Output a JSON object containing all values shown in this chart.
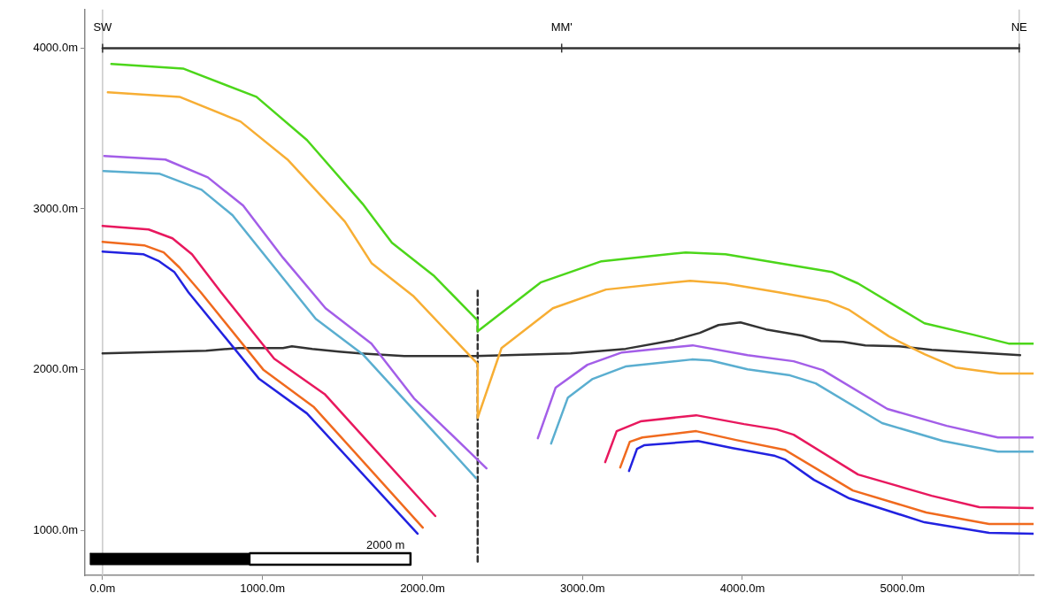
{
  "chart_data": {
    "type": "line",
    "marker": "none",
    "line_style": "solid",
    "grid": false,
    "legend": false,
    "xlim": [
      -110,
      5820
    ],
    "ylim": [
      720,
      4240
    ],
    "xticks": [
      {
        "value": 0,
        "label": "0.0m"
      },
      {
        "value": 1000,
        "label": "1000.0m"
      },
      {
        "value": 2000,
        "label": "2000.0m"
      },
      {
        "value": 3000,
        "label": "3000.0m"
      },
      {
        "value": 4000,
        "label": "4000.0m"
      },
      {
        "value": 5000,
        "label": "5000.0m"
      }
    ],
    "yticks": [
      {
        "value": 1000,
        "label": "1000.0m"
      },
      {
        "value": 2000,
        "label": "2000.0m"
      },
      {
        "value": 3000,
        "label": "3000.0m"
      },
      {
        "value": 4000,
        "label": "4000.0m"
      }
    ],
    "series": [
      {
        "color": "#4cd61a",
        "x": [
          55,
          503,
          962,
          1278,
          1626,
          1809,
          2069,
          2345,
          2345,
          2738,
          3119,
          3645,
          3894,
          4226,
          4558,
          4723,
          5138,
          5442,
          5664,
          5819
        ],
        "values": [
          3901,
          3873,
          3697,
          3428,
          3031,
          2789,
          2586,
          2305,
          2239,
          2542,
          2674,
          2729,
          2718,
          2663,
          2608,
          2536,
          2288,
          2217,
          2162,
          2162
        ]
      },
      {
        "color": "#f7ae34",
        "x": [
          33,
          481,
          863,
          1156,
          1515,
          1681,
          1941,
          2345,
          2345,
          2494,
          2815,
          3147,
          3673,
          3894,
          4226,
          4530,
          4668,
          4917,
          5138,
          5332,
          5608,
          5819
        ],
        "values": [
          3725,
          3697,
          3543,
          3307,
          2921,
          2663,
          2459,
          2035,
          1700,
          2134,
          2382,
          2498,
          2553,
          2536,
          2481,
          2426,
          2371,
          2206,
          2096,
          2013,
          1975,
          1975
        ]
      },
      {
        "color": "#a35ee8",
        "x": [
          11,
          393,
          658,
          879,
          1128,
          1394,
          1681,
          1947,
          2400,
          2560,
          2721,
          2832,
          3031,
          3247,
          3689,
          4032,
          4320,
          4502,
          4906,
          5277,
          5597,
          5819
        ],
        "values": [
          3329,
          3307,
          3196,
          3020,
          2696,
          2382,
          2162,
          1821,
          1386,
          null,
          1573,
          1887,
          2030,
          2107,
          2151,
          2090,
          2052,
          1997,
          1755,
          1650,
          1578,
          1578
        ]
      },
      {
        "color": "#5aaed0",
        "x": [
          6,
          354,
          619,
          813,
          1333,
          1626,
          2334,
          2560,
          2804,
          2909,
          3064,
          3269,
          3684,
          3800,
          4032,
          4298,
          4458,
          4873,
          5254,
          5597,
          5819
        ],
        "values": [
          3235,
          3219,
          3119,
          2960,
          2316,
          2096,
          1325,
          null,
          1540,
          1826,
          1942,
          2019,
          2063,
          2057,
          2002,
          1964,
          1914,
          1667,
          1556,
          1490,
          1490
        ]
      },
      {
        "color": "#e8185e",
        "x": [
          0,
          288,
          437,
          559,
          741,
          1073,
          1388,
          2080,
          2600,
          3142,
          3214,
          3363,
          3711,
          4010,
          4215,
          4320,
          4723,
          5183,
          5481,
          5819
        ],
        "values": [
          2894,
          2872,
          2817,
          2718,
          2481,
          2068,
          1848,
          1089,
          null,
          1424,
          1617,
          1678,
          1716,
          1661,
          1628,
          1595,
          1347,
          1215,
          1144,
          1138
        ]
      },
      {
        "color": "#f06a1e",
        "x": [
          0,
          260,
          382,
          481,
          614,
          1007,
          1322,
          2002,
          2600,
          3236,
          3296,
          3374,
          3711,
          3960,
          4265,
          4690,
          5149,
          5542,
          5819
        ],
        "values": [
          2795,
          2773,
          2729,
          2635,
          2481,
          1997,
          1766,
          1017,
          null,
          1391,
          1551,
          1578,
          1617,
          1562,
          1501,
          1248,
          1111,
          1039,
          1039
        ]
      },
      {
        "color": "#2222e0",
        "x": [
          0,
          254,
          354,
          448,
          537,
          979,
          1278,
          1969,
          2600,
          3291,
          3341,
          3385,
          3722,
          3938,
          4204,
          4265,
          4447,
          4668,
          5138,
          5542,
          5819
        ],
        "values": [
          2734,
          2718,
          2674,
          2608,
          2481,
          1942,
          1727,
          979,
          null,
          1369,
          1507,
          1529,
          1556,
          1512,
          1463,
          1441,
          1314,
          1199,
          1050,
          984,
          979
        ]
      },
      {
        "color": "#333333",
        "x": [
          0,
          647,
          852,
          1128,
          1184,
          1311,
          1477,
          1610,
          1886,
          2329,
          2926,
          3269,
          3573,
          3733,
          3850,
          3988,
          4148,
          4375,
          4491,
          4629,
          4768,
          4978,
          5183,
          5736
        ],
        "values": [
          2101,
          2118,
          2134,
          2134,
          2145,
          2129,
          2112,
          2101,
          2085,
          2085,
          2101,
          2129,
          2184,
          2228,
          2277,
          2294,
          2250,
          2211,
          2178,
          2173,
          2151,
          2145,
          2123,
          2090
        ]
      },
      {
        "color": "#333333",
        "line_style": "dashed",
        "x": [
          2345,
          2345
        ],
        "values": [
          2490,
          790
        ]
      },
      {
        "color": "#333333",
        "x": [
          0,
          2870,
          5730
        ],
        "values": [
          4000,
          4000,
          4000
        ]
      },
      {
        "color": "#000000",
        "x": [
          922,
          1925,
          1925,
          922
        ],
        "values": [
          857,
          857,
          786,
          786
        ]
      },
      {
        "type": "area",
        "color": "#000000",
        "x": [
          -77,
          922,
          922,
          -77,
          -77
        ],
        "values": [
          857,
          857,
          786,
          786,
          857
        ]
      }
    ],
    "ref_lines": [
      {
        "axis": "x",
        "value": 0,
        "color": "#c8c8c8"
      },
      {
        "axis": "x",
        "value": 5730,
        "color": "#c8c8c8"
      }
    ],
    "annotations": [
      {
        "text": "SW",
        "x": 0,
        "y": 4000
      },
      {
        "text": "MM'",
        "x": 2870,
        "y": 4000
      },
      {
        "text": "NE",
        "x": 5730,
        "y": 4000
      },
      "2000 m"
    ]
  }
}
